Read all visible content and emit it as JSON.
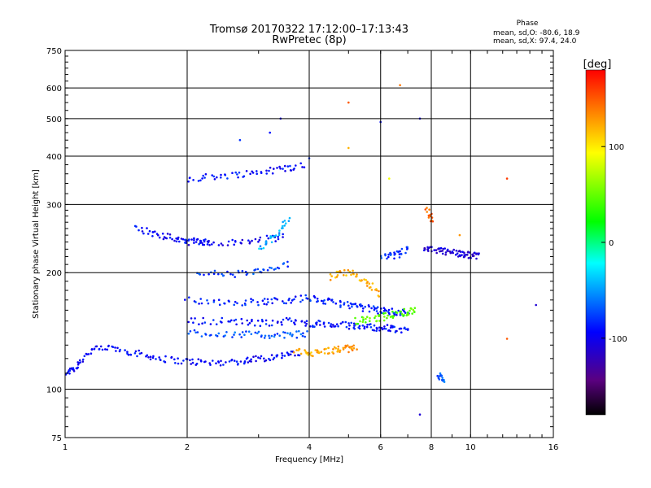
{
  "chart_data": {
    "type": "scatter",
    "title": "Tromsø 20170322 17:12:00–17:13:43",
    "subtitle": "RwPretec (8p)",
    "xlabel": "Frequency [MHz]",
    "ylabel": "Stationary phase Virtual Height [km]",
    "x_scale": "log",
    "y_scale": "log",
    "xlim": [
      1,
      16
    ],
    "ylim": [
      75,
      750
    ],
    "x_ticks": [
      1,
      2,
      4,
      6,
      8,
      10,
      16
    ],
    "x_tick_labels": [
      "1",
      "2",
      "4",
      "6",
      "8",
      "10",
      "16"
    ],
    "y_ticks": [
      75,
      100,
      200,
      300,
      400,
      500,
      600,
      750
    ],
    "y_tick_labels": [
      "75",
      "100",
      "200",
      "300",
      "400",
      "500",
      "600",
      "750"
    ],
    "grid": true,
    "phase_header": "Phase",
    "phase_stats": [
      "mean, sd,O: -80.6, 18.9",
      "mean, sd,X:  97.4, 24.0"
    ],
    "colorbar": {
      "label": "[deg]",
      "range": [
        -180,
        180
      ],
      "ticks": [
        100,
        0,
        -100
      ],
      "tick_labels": [
        "100",
        "0",
        "-100"
      ],
      "colormap": "rainbow"
    },
    "traces": [
      {
        "x": [
          1.0,
          1.06,
          1.15,
          1.3,
          1.5,
          1.7,
          2.0,
          2.3,
          2.7,
          3.0,
          3.4,
          3.8
        ],
        "y": [
          110,
          114,
          126,
          128,
          124,
          120,
          118,
          117,
          118,
          120,
          122,
          124
        ],
        "phase": -95
      },
      {
        "x": [
          3.7,
          4.1,
          4.5,
          4.9,
          5.2
        ],
        "y": [
          125,
          124,
          126,
          127,
          128
        ],
        "phase": 125
      },
      {
        "x": [
          2.0,
          2.4,
          2.9,
          3.4,
          3.9
        ],
        "y": [
          350,
          355,
          362,
          370,
          380
        ],
        "phase": -90
      },
      {
        "x": [
          2.0,
          2.5,
          3.0,
          3.5
        ],
        "y": [
          240,
          238,
          242,
          248
        ],
        "phase": -100
      },
      {
        "x": [
          3.0,
          3.3,
          3.6
        ],
        "y": [
          230,
          250,
          275
        ],
        "phase": -45
      },
      {
        "x": [
          2.1,
          2.6,
          3.1,
          3.6
        ],
        "y": [
          200,
          198,
          202,
          210
        ],
        "phase": -75
      },
      {
        "x": [
          2.0,
          2.5,
          3.0,
          3.5,
          4.0,
          4.5,
          5.0,
          5.5,
          6.0,
          6.5,
          7.0
        ],
        "y": [
          170,
          168,
          168,
          170,
          172,
          168,
          165,
          162,
          160,
          158,
          158
        ],
        "phase": -85
      },
      {
        "x": [
          2.0,
          2.5,
          3.0,
          3.5,
          4.0,
          4.5,
          5.0,
          5.5,
          6.0,
          6.5,
          7.0
        ],
        "y": [
          150,
          150,
          148,
          150,
          148,
          147,
          146,
          145,
          144,
          143,
          142
        ],
        "phase": -90
      },
      {
        "x": [
          2.0,
          2.5,
          3.0,
          3.5,
          4.0
        ],
        "y": [
          140,
          139,
          138,
          138,
          139
        ],
        "phase": -70
      },
      {
        "x": [
          5.2,
          5.8,
          6.3,
          6.9,
          7.3
        ],
        "y": [
          150,
          152,
          155,
          158,
          160
        ],
        "phase": 45
      },
      {
        "x": [
          4.5,
          5.0,
          5.5,
          6.0
        ],
        "y": [
          195,
          200,
          190,
          175
        ],
        "phase": 120
      },
      {
        "x": [
          6.0,
          6.6,
          7.0
        ],
        "y": [
          218,
          222,
          232
        ],
        "phase": -80
      },
      {
        "x": [
          7.6,
          8.2,
          8.8,
          9.4,
          10.0,
          10.4
        ],
        "y": [
          230,
          228,
          226,
          224,
          222,
          220
        ],
        "phase": -110
      },
      {
        "x": [
          7.8,
          8.0
        ],
        "y": [
          290,
          270
        ],
        "phase": 150
      },
      {
        "x": [
          1.5,
          1.7,
          1.9,
          2.1,
          2.3
        ],
        "y": [
          260,
          250,
          245,
          240,
          240
        ],
        "phase": -95
      },
      {
        "x": [
          8.3,
          8.6
        ],
        "y": [
          110,
          104
        ],
        "phase": -70
      }
    ],
    "points": [
      {
        "x": 6.7,
        "y": 610,
        "phase": 140
      },
      {
        "x": 5.0,
        "y": 550,
        "phase": 150
      },
      {
        "x": 12.3,
        "y": 350,
        "phase": 160
      },
      {
        "x": 14.5,
        "y": 165,
        "phase": -110
      },
      {
        "x": 12.3,
        "y": 135,
        "phase": 150
      },
      {
        "x": 7.5,
        "y": 86,
        "phase": -110
      },
      {
        "x": 3.4,
        "y": 500,
        "phase": -100
      },
      {
        "x": 3.2,
        "y": 460,
        "phase": -90
      },
      {
        "x": 7.5,
        "y": 500,
        "phase": -100
      },
      {
        "x": 6.0,
        "y": 490,
        "phase": -90
      },
      {
        "x": 2.7,
        "y": 440,
        "phase": -80
      },
      {
        "x": 4.0,
        "y": 395,
        "phase": -80
      },
      {
        "x": 5.0,
        "y": 420,
        "phase": 120
      },
      {
        "x": 6.3,
        "y": 350,
        "phase": 90
      },
      {
        "x": 9.4,
        "y": 250,
        "phase": 130
      }
    ]
  }
}
